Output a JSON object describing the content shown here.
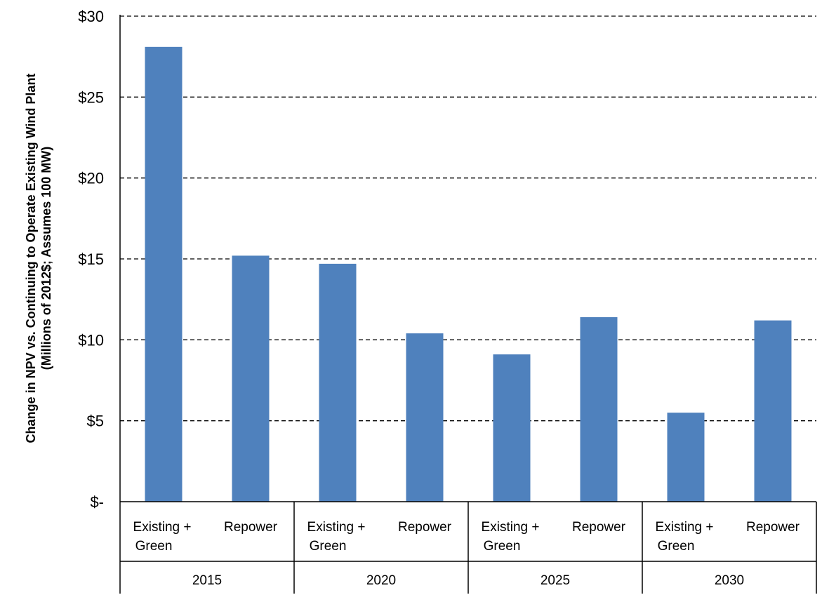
{
  "chart_data": {
    "type": "bar",
    "ylabel_lines": [
      "Change in NPV vs. Continuing to Operate Existing Wind Plant",
      "(Millions of 2012$; Assumes 100 MW)"
    ],
    "ylim": [
      0,
      30
    ],
    "y_ticks": [
      {
        "value": 0,
        "label": "$-"
      },
      {
        "value": 5,
        "label": "$5"
      },
      {
        "value": 10,
        "label": "$10"
      },
      {
        "value": 15,
        "label": "$15"
      },
      {
        "value": 20,
        "label": "$20"
      },
      {
        "value": 25,
        "label": "$25"
      },
      {
        "value": 30,
        "label": "$30"
      }
    ],
    "grid": "horizontal dashed",
    "bar_color": "#4f81bd",
    "groups": [
      {
        "label": "2015",
        "bars": [
          {
            "label_lines": [
              "Existing +",
              "Green"
            ],
            "value": 28.1
          },
          {
            "label_lines": [
              "Repower"
            ],
            "value": 15.2
          }
        ]
      },
      {
        "label": "2020",
        "bars": [
          {
            "label_lines": [
              "Existing +",
              "Green"
            ],
            "value": 14.7
          },
          {
            "label_lines": [
              "Repower"
            ],
            "value": 10.4
          }
        ]
      },
      {
        "label": "2025",
        "bars": [
          {
            "label_lines": [
              "Existing +",
              "Green"
            ],
            "value": 9.1
          },
          {
            "label_lines": [
              "Repower"
            ],
            "value": 11.4
          }
        ]
      },
      {
        "label": "2030",
        "bars": [
          {
            "label_lines": [
              "Existing +",
              "Green"
            ],
            "value": 5.5
          },
          {
            "label_lines": [
              "Repower"
            ],
            "value": 11.2
          }
        ]
      }
    ]
  }
}
